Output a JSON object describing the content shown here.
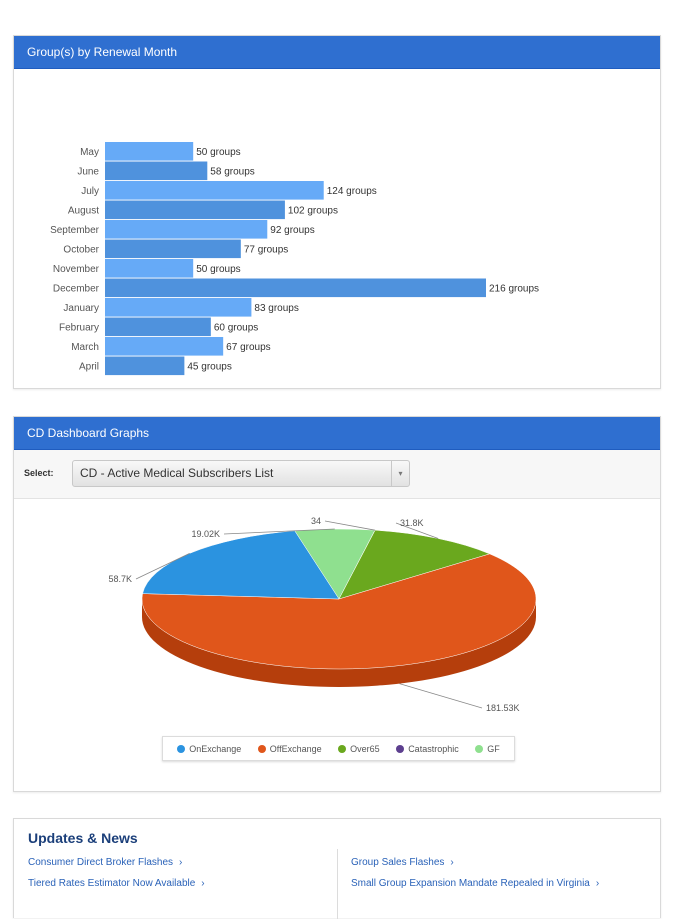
{
  "bar_panel": {
    "title": "Group(s) by Renewal Month"
  },
  "chart_data": [
    {
      "type": "bar",
      "orientation": "horizontal",
      "categories": [
        "May",
        "June",
        "July",
        "August",
        "September",
        "October",
        "November",
        "December",
        "January",
        "February",
        "March",
        "April"
      ],
      "values": [
        50,
        58,
        124,
        102,
        92,
        77,
        50,
        216,
        83,
        60,
        67,
        45
      ],
      "data_labels": [
        "50 groups",
        "58 groups",
        "124 groups",
        "102 groups",
        "92 groups",
        "77 groups",
        "50 groups",
        "216 groups",
        "83 groups",
        "60 groups",
        "67 groups",
        "45 groups"
      ],
      "colors": {
        "light": "#66aaf7",
        "dark": "#4f92dd"
      }
    },
    {
      "type": "pie",
      "categories": [
        "OnExchange",
        "OffExchange",
        "Over65",
        "Catastrophic",
        "GF"
      ],
      "values": [
        58700,
        181530,
        31800,
        34,
        19020
      ],
      "data_labels": [
        "58.7K",
        "181.53K",
        "31.8K",
        "34",
        "19.02K"
      ],
      "colors": [
        "#2b93e0",
        "#e0561b",
        "#6aa81e",
        "#5d3f8f",
        "#8fe08f"
      ],
      "legend_position": "bottom"
    }
  ],
  "pie_panel": {
    "title": "CD Dashboard Graphs",
    "select_label": "Select:",
    "select_value": "CD - Active Medical Subscribers List",
    "select_arrow": "▾"
  },
  "legend": [
    {
      "label": "OnExchange",
      "color": "#2b93e0"
    },
    {
      "label": "OffExchange",
      "color": "#e0561b"
    },
    {
      "label": "Over65",
      "color": "#6aa81e"
    },
    {
      "label": "Catastrophic",
      "color": "#5d3f8f"
    },
    {
      "label": "GF",
      "color": "#8fe08f"
    }
  ],
  "news": {
    "title": "Updates & News",
    "left_links": [
      "Consumer Direct Broker Flashes",
      "Tiered Rates Estimator Now Available"
    ],
    "right_links": [
      "Group Sales Flashes",
      "Small Group Expansion Mandate Repealed in Virginia"
    ],
    "chevron": "›"
  }
}
